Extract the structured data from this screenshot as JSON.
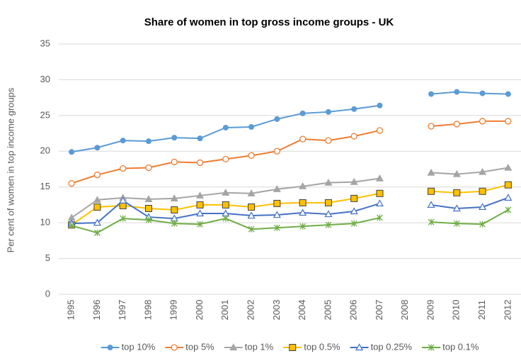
{
  "chart_data": {
    "type": "line",
    "title": "Share of women in top gross income groups - UK",
    "y_label": "Per cent of women in top income groups",
    "categories": [
      "1995",
      "1996",
      "1997",
      "1998",
      "1999",
      "2000",
      "2001",
      "2002",
      "2003",
      "2004",
      "2005",
      "2006",
      "2007",
      "2008",
      "2009",
      "2010",
      "2011",
      "2012"
    ],
    "ylim": [
      0,
      35
    ],
    "yticks": [
      0,
      5,
      10,
      15,
      20,
      25,
      30,
      35
    ],
    "grid": true,
    "legend": "bottom",
    "series": [
      {
        "name": "top 10%",
        "color": "#5b9bd5",
        "marker": "circle",
        "values": [
          19.9,
          20.5,
          21.5,
          21.4,
          21.9,
          21.8,
          23.3,
          23.4,
          24.5,
          25.3,
          25.5,
          25.9,
          26.4,
          null,
          28.0,
          28.3,
          28.1,
          28.0
        ]
      },
      {
        "name": "top 5%",
        "color": "#ed7d31",
        "marker": "circle-open",
        "values": [
          15.5,
          16.7,
          17.6,
          17.7,
          18.5,
          18.4,
          18.9,
          19.4,
          20.0,
          21.7,
          21.5,
          22.1,
          22.9,
          null,
          23.5,
          23.8,
          24.2,
          24.2
        ]
      },
      {
        "name": "top 1%",
        "color": "#a5a5a5",
        "marker": "triangle",
        "values": [
          10.7,
          13.2,
          13.5,
          13.3,
          13.4,
          13.8,
          14.2,
          14.1,
          14.7,
          15.1,
          15.6,
          15.7,
          16.2,
          null,
          17.0,
          16.8,
          17.1,
          17.7
        ]
      },
      {
        "name": "top 0.5%",
        "color": "#ffc000",
        "marker": "square",
        "values": [
          9.7,
          12.2,
          12.4,
          12.0,
          11.8,
          12.5,
          12.5,
          12.2,
          12.7,
          12.8,
          12.8,
          13.4,
          14.1,
          null,
          14.4,
          14.2,
          14.4,
          15.3
        ]
      },
      {
        "name": "top 0.25%",
        "color": "#4472c4",
        "marker": "triangle-open",
        "values": [
          9.9,
          10.0,
          13.1,
          10.8,
          10.6,
          11.3,
          11.3,
          11.0,
          11.1,
          11.4,
          11.2,
          11.6,
          12.7,
          null,
          12.5,
          12.0,
          12.2,
          13.5
        ]
      },
      {
        "name": "top 0.1%",
        "color": "#70ad47",
        "marker": "star",
        "values": [
          9.6,
          8.6,
          10.6,
          10.4,
          9.9,
          9.8,
          10.6,
          9.1,
          9.3,
          9.5,
          9.7,
          9.9,
          10.7,
          null,
          10.1,
          9.9,
          9.8,
          11.8
        ]
      }
    ]
  }
}
